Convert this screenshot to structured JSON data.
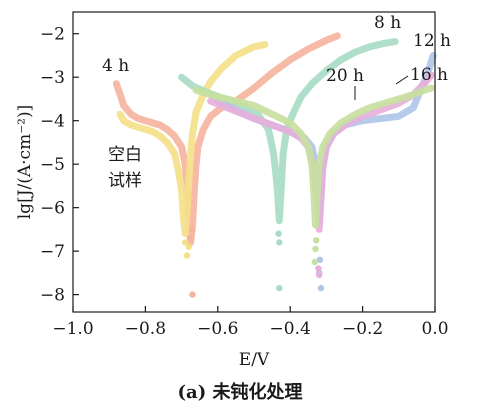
{
  "figure": {
    "caption": "(a) 未钝化处理"
  },
  "chart_data": {
    "type": "scatter",
    "xlabel": "E/V",
    "ylabel": "lg[J/(A·cm⁻²)]",
    "xlim": [
      -1.0,
      0.0
    ],
    "ylim": [
      -8.4,
      -1.5
    ],
    "xticks": [
      -1.0,
      -0.8,
      -0.6,
      -0.4,
      -0.2,
      0.0
    ],
    "xtick_labels": [
      "−1.0",
      "−0.8",
      "−0.6",
      "−0.4",
      "−0.2",
      "0.0"
    ],
    "yticks": [
      -8,
      -7,
      -6,
      -5,
      -4,
      -3,
      -2
    ],
    "ytick_labels": [
      "−8",
      "−7",
      "−6",
      "−5",
      "−4",
      "−3",
      "−2"
    ],
    "grid": false,
    "annotations": [
      {
        "text": "4 h"
      },
      {
        "text": "8 h"
      },
      {
        "text": "12 h"
      },
      {
        "text": "16 h"
      },
      {
        "text": "20 h"
      },
      {
        "text": "空白"
      },
      {
        "text": "试样"
      }
    ],
    "series": [
      {
        "color": "#f5b4a0",
        "points": [
          [
            -0.88,
            -3.15
          ],
          [
            -0.87,
            -3.4
          ],
          [
            -0.86,
            -3.65
          ],
          [
            -0.84,
            -3.85
          ],
          [
            -0.82,
            -3.95
          ],
          [
            -0.8,
            -4.0
          ],
          [
            -0.78,
            -4.05
          ],
          [
            -0.76,
            -4.1
          ],
          [
            -0.74,
            -4.2
          ],
          [
            -0.72,
            -4.35
          ],
          [
            -0.7,
            -4.6
          ],
          [
            -0.69,
            -5.0
          ],
          [
            -0.685,
            -5.5
          ],
          [
            -0.68,
            -6.3
          ],
          [
            -0.675,
            -6.8
          ],
          [
            -0.67,
            -6.4
          ],
          [
            -0.665,
            -5.6
          ],
          [
            -0.66,
            -5.0
          ],
          [
            -0.655,
            -4.6
          ],
          [
            -0.64,
            -4.2
          ],
          [
            -0.62,
            -3.9
          ],
          [
            -0.59,
            -3.7
          ],
          [
            -0.55,
            -3.55
          ],
          [
            -0.5,
            -3.25
          ],
          [
            -0.45,
            -2.9
          ],
          [
            -0.4,
            -2.6
          ],
          [
            -0.35,
            -2.35
          ],
          [
            -0.3,
            -2.15
          ],
          [
            -0.27,
            -2.05
          ]
        ]
      },
      {
        "color": "#f5e08a",
        "points": [
          [
            -0.87,
            -3.85
          ],
          [
            -0.86,
            -4.0
          ],
          [
            -0.84,
            -4.1
          ],
          [
            -0.82,
            -4.15
          ],
          [
            -0.8,
            -4.2
          ],
          [
            -0.78,
            -4.25
          ],
          [
            -0.76,
            -4.35
          ],
          [
            -0.74,
            -4.5
          ],
          [
            -0.72,
            -4.75
          ],
          [
            -0.71,
            -5.1
          ],
          [
            -0.7,
            -5.6
          ],
          [
            -0.695,
            -6.2
          ],
          [
            -0.69,
            -6.6
          ],
          [
            -0.685,
            -6.1
          ],
          [
            -0.68,
            -5.4
          ],
          [
            -0.675,
            -4.8
          ],
          [
            -0.67,
            -4.3
          ],
          [
            -0.66,
            -3.8
          ],
          [
            -0.64,
            -3.4
          ],
          [
            -0.62,
            -3.1
          ],
          [
            -0.59,
            -2.8
          ],
          [
            -0.55,
            -2.5
          ],
          [
            -0.5,
            -2.3
          ],
          [
            -0.47,
            -2.25
          ]
        ]
      },
      {
        "color": "#a8dcc6",
        "points": [
          [
            -0.7,
            -3.0
          ],
          [
            -0.67,
            -3.2
          ],
          [
            -0.63,
            -3.35
          ],
          [
            -0.58,
            -3.5
          ],
          [
            -0.53,
            -3.65
          ],
          [
            -0.49,
            -3.85
          ],
          [
            -0.46,
            -4.2
          ],
          [
            -0.445,
            -4.8
          ],
          [
            -0.435,
            -5.6
          ],
          [
            -0.43,
            -6.3
          ],
          [
            -0.425,
            -5.6
          ],
          [
            -0.42,
            -4.8
          ],
          [
            -0.41,
            -4.2
          ],
          [
            -0.39,
            -3.8
          ],
          [
            -0.37,
            -3.45
          ],
          [
            -0.34,
            -3.15
          ],
          [
            -0.3,
            -2.85
          ],
          [
            -0.26,
            -2.6
          ],
          [
            -0.22,
            -2.42
          ],
          [
            -0.18,
            -2.3
          ],
          [
            -0.14,
            -2.22
          ],
          [
            -0.11,
            -2.18
          ]
        ]
      },
      {
        "color": "#b0c6e8",
        "points": [
          [
            -0.6,
            -3.55
          ],
          [
            -0.55,
            -3.75
          ],
          [
            -0.5,
            -3.95
          ],
          [
            -0.45,
            -4.1
          ],
          [
            -0.4,
            -4.25
          ],
          [
            -0.36,
            -4.4
          ],
          [
            -0.34,
            -4.6
          ],
          [
            -0.33,
            -5.0
          ],
          [
            -0.325,
            -5.6
          ],
          [
            -0.32,
            -6.3
          ],
          [
            -0.315,
            -5.6
          ],
          [
            -0.31,
            -5.0
          ],
          [
            -0.3,
            -4.6
          ],
          [
            -0.28,
            -4.3
          ],
          [
            -0.25,
            -4.1
          ],
          [
            -0.2,
            -4.0
          ],
          [
            -0.15,
            -3.95
          ],
          [
            -0.1,
            -3.9
          ],
          [
            -0.06,
            -3.7
          ],
          [
            -0.04,
            -3.3
          ],
          [
            -0.02,
            -2.9
          ],
          [
            -0.005,
            -2.5
          ]
        ]
      },
      {
        "color": "#e6b0dc",
        "points": [
          [
            -0.62,
            -3.55
          ],
          [
            -0.56,
            -3.75
          ],
          [
            -0.5,
            -3.95
          ],
          [
            -0.45,
            -4.1
          ],
          [
            -0.4,
            -4.25
          ],
          [
            -0.37,
            -4.4
          ],
          [
            -0.35,
            -4.6
          ],
          [
            -0.335,
            -5.1
          ],
          [
            -0.325,
            -5.8
          ],
          [
            -0.32,
            -6.5
          ],
          [
            -0.315,
            -5.8
          ],
          [
            -0.31,
            -5.1
          ],
          [
            -0.3,
            -4.6
          ],
          [
            -0.28,
            -4.3
          ],
          [
            -0.24,
            -4.05
          ],
          [
            -0.2,
            -3.9
          ],
          [
            -0.15,
            -3.75
          ],
          [
            -0.1,
            -3.6
          ],
          [
            -0.06,
            -3.4
          ],
          [
            -0.03,
            -3.15
          ],
          [
            -0.01,
            -2.95
          ]
        ]
      },
      {
        "color": "#c8e0a0",
        "points": [
          [
            -0.66,
            -3.3
          ],
          [
            -0.6,
            -3.45
          ],
          [
            -0.55,
            -3.55
          ],
          [
            -0.5,
            -3.65
          ],
          [
            -0.45,
            -3.85
          ],
          [
            -0.4,
            -4.05
          ],
          [
            -0.37,
            -4.3
          ],
          [
            -0.35,
            -4.6
          ],
          [
            -0.34,
            -5.0
          ],
          [
            -0.335,
            -5.6
          ],
          [
            -0.33,
            -6.4
          ],
          [
            -0.325,
            -5.6
          ],
          [
            -0.32,
            -5.0
          ],
          [
            -0.31,
            -4.6
          ],
          [
            -0.29,
            -4.3
          ],
          [
            -0.26,
            -4.05
          ],
          [
            -0.22,
            -3.85
          ],
          [
            -0.18,
            -3.7
          ],
          [
            -0.14,
            -3.6
          ],
          [
            -0.1,
            -3.5
          ],
          [
            -0.06,
            -3.4
          ],
          [
            -0.03,
            -3.3
          ],
          [
            -0.01,
            -3.25
          ]
        ]
      }
    ],
    "scatter_points": [
      {
        "color": "#f5b4a0",
        "points": [
          [
            -0.67,
            -8.0
          ],
          [
            -0.675,
            -6.7
          ],
          [
            -0.67,
            -6.5
          ]
        ]
      },
      {
        "color": "#f5e08a",
        "points": [
          [
            -0.685,
            -7.1
          ],
          [
            -0.69,
            -6.8
          ],
          [
            -0.68,
            -6.9
          ]
        ]
      },
      {
        "color": "#a8dcc6",
        "points": [
          [
            -0.43,
            -7.85
          ],
          [
            -0.43,
            -6.8
          ],
          [
            -0.432,
            -6.6
          ]
        ]
      },
      {
        "color": "#b0c6e8",
        "points": [
          [
            -0.315,
            -7.85
          ],
          [
            -0.32,
            -7.5
          ],
          [
            -0.318,
            -7.2
          ]
        ]
      },
      {
        "color": "#e6b0dc",
        "points": [
          [
            -0.32,
            -7.55
          ],
          [
            -0.322,
            -7.4
          ]
        ]
      },
      {
        "color": "#c8e0a0",
        "points": [
          [
            -0.33,
            -6.95
          ],
          [
            -0.332,
            -7.25
          ],
          [
            -0.328,
            -6.75
          ]
        ]
      }
    ]
  }
}
